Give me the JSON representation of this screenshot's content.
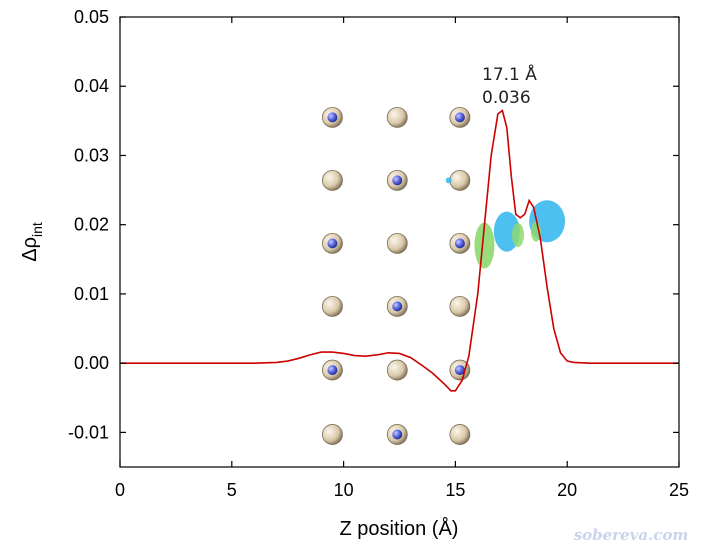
{
  "chart_data": {
    "type": "line",
    "xlabel": "Z position (Å)",
    "ylabel_symbol": "Δρ",
    "ylabel_subscript": "int",
    "xlim": [
      0,
      25
    ],
    "ylim": [
      -0.015,
      0.05
    ],
    "x_ticks": [
      0,
      5,
      10,
      15,
      20,
      25
    ],
    "x_tick_labels": [
      "0",
      "5",
      "10",
      "15",
      "20",
      "25"
    ],
    "y_ticks": [
      -0.01,
      0.0,
      0.01,
      0.02,
      0.03,
      0.04,
      0.05
    ],
    "y_tick_labels": [
      "-0.01",
      "0.00",
      "0.01",
      "0.02",
      "0.03",
      "0.04",
      "0.05"
    ],
    "grid": false,
    "series": [
      {
        "color": "#cc0000",
        "x": [
          0,
          2,
          4,
          6,
          7,
          7.5,
          8,
          8.5,
          9,
          9.5,
          10,
          10.5,
          11,
          11.5,
          12,
          12.5,
          13,
          13.5,
          14,
          14.5,
          14.8,
          15.0,
          15.3,
          15.6,
          16.0,
          16.3,
          16.6,
          16.9,
          17.1,
          17.3,
          17.5,
          17.7,
          17.9,
          18.1,
          18.3,
          18.5,
          18.8,
          19.1,
          19.4,
          19.7,
          20.0,
          20.3,
          21,
          22,
          23,
          25
        ],
        "y": [
          0,
          0,
          0,
          0,
          0.0001,
          0.0003,
          0.0007,
          0.0012,
          0.0016,
          0.0016,
          0.0014,
          0.0011,
          0.001,
          0.0012,
          0.0015,
          0.0014,
          0.0008,
          -0.0003,
          -0.0015,
          -0.003,
          -0.004,
          -0.004,
          -0.0025,
          0.001,
          0.01,
          0.02,
          0.03,
          0.036,
          0.0365,
          0.034,
          0.027,
          0.0215,
          0.021,
          0.0215,
          0.0235,
          0.0225,
          0.018,
          0.011,
          0.005,
          0.0015,
          0.0003,
          0.0001,
          0,
          0,
          0,
          0
        ]
      }
    ],
    "annotation": {
      "lines": [
        "17.1 Å",
        "0.036"
      ],
      "x": 16.6,
      "y": 0.041
    },
    "inset_lattice": {
      "columns_x": [
        9.5,
        12.4,
        15.2
      ],
      "rows_y": [
        0.0355,
        0.0264,
        0.0173,
        0.0082,
        -0.001,
        -0.0103
      ],
      "atom_color": "#d8c8a8",
      "dopant_color": "#5560e0",
      "isosurface_colors": [
        "#3ab8ee",
        "#8ed86e"
      ]
    },
    "watermark": "sobereva.com"
  }
}
